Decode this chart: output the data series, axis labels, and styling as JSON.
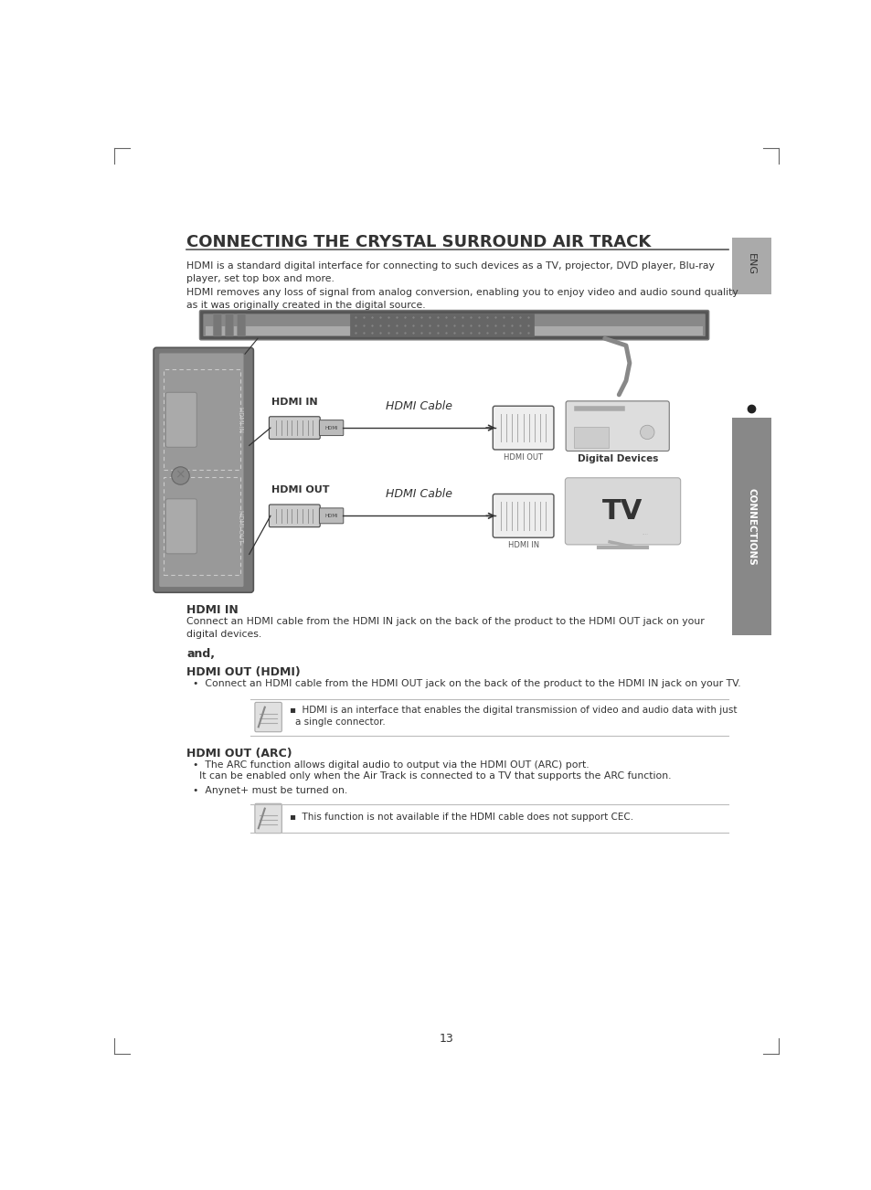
{
  "page_bg": "#ffffff",
  "page_width": 9.54,
  "page_height": 13.02,
  "title": "CONNECTING THE CRYSTAL SURROUND AIR TRACK",
  "para1": "HDMI is a standard digital interface for connecting to such devices as a TV, projector, DVD player, Blu-ray\nplayer, set top box and more.",
  "para2": "HDMI removes any loss of signal from analog conversion, enabling you to enjoy video and audio sound quality\nas it was originally created in the digital source.",
  "section1_title": "HDMI IN",
  "section1_body": "Connect an HDMI cable from the HDMI IN jack on the back of the product to the HDMI OUT jack on your\ndigital devices.",
  "and_label": "and,",
  "section2_title": "HDMI OUT (HDMI)",
  "section2_bullet": "Connect an HDMI cable from the HDMI OUT jack on the back of the product to the HDMI IN jack on your TV.",
  "note1_line1": "HDMI is an interface that enables the digital transmission of video and audio data with just",
  "note1_line2": "a single connector.",
  "section3_title": "HDMI OUT (ARC)",
  "section3_bullet1a": "The ARC function allows digital audio to output via the HDMI OUT (ARC) port.",
  "section3_bullet1b": "  It can be enabled only when the Air Track is connected to a TV that supports the ARC function.",
  "section3_bullet2": "Anynet+ must be turned on.",
  "note2": "This function is not available if the HDMI cable does not support CEC.",
  "page_number": "13",
  "sidebar_label": "CONNECTIONS",
  "eng_label": "ENG",
  "text_color": "#333333",
  "sidebar_bg": "#999999",
  "sidebar_dark_bg": "#888888",
  "note_line_color": "#bbbbbb"
}
